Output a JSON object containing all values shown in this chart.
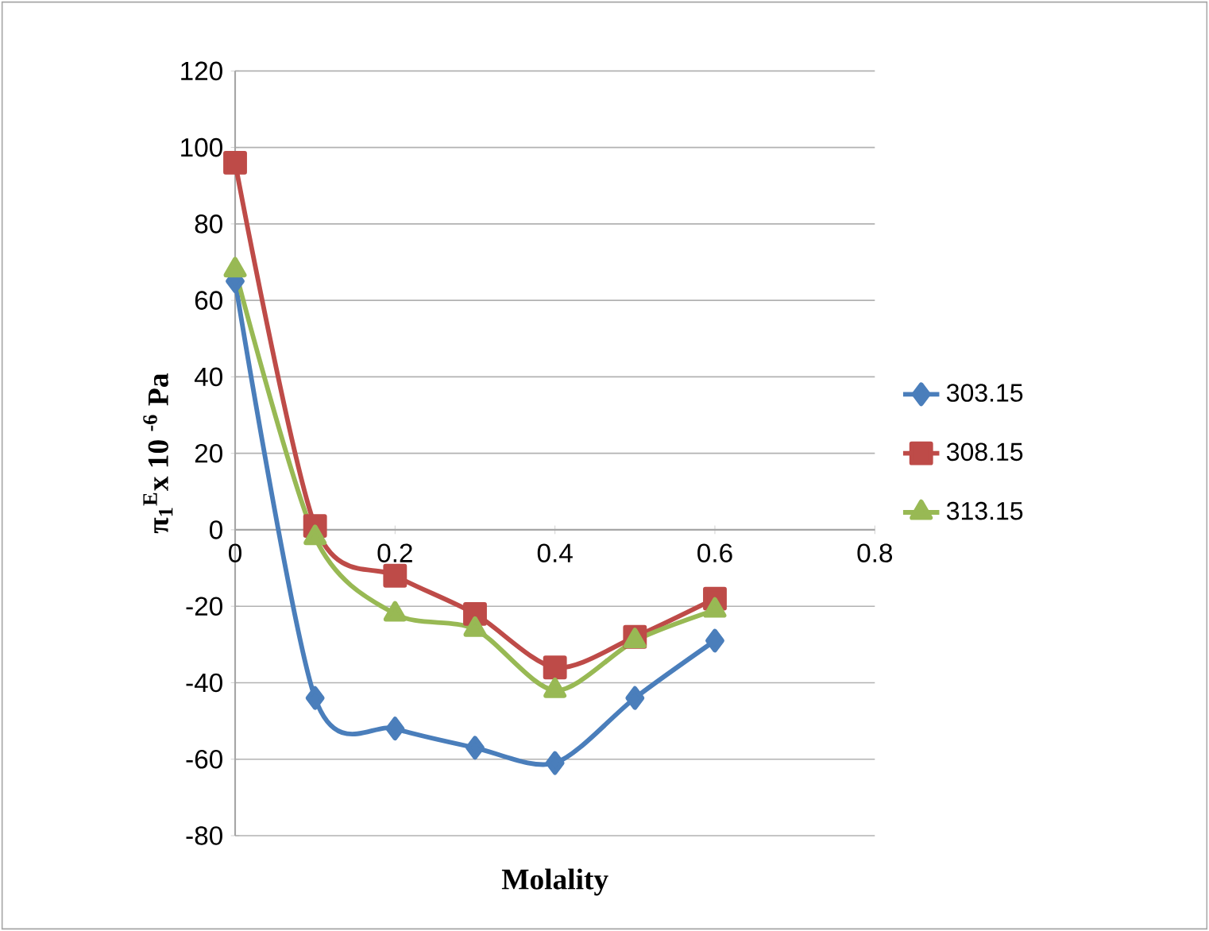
{
  "chart_data": {
    "type": "line",
    "xlabel": "Molality",
    "ylabel": "π$_{1}$$^{E}$x 10 $^{-6}$ Pa",
    "x": [
      0,
      0.1,
      0.2,
      0.3,
      0.4,
      0.5,
      0.6
    ],
    "series": [
      {
        "name": "303.15",
        "color": "#4a7ebb",
        "marker": "diamond",
        "values": [
          65,
          -44,
          -52,
          -57,
          -61,
          -44,
          -29
        ]
      },
      {
        "name": "308.15",
        "color": "#be4b48",
        "marker": "square",
        "values": [
          96,
          1,
          -12,
          -22,
          -36,
          -28,
          -18
        ]
      },
      {
        "name": "313.15",
        "color": "#98b954",
        "marker": "triangle",
        "values": [
          68,
          -2,
          -22,
          -26,
          -42,
          -29,
          -21
        ]
      }
    ],
    "xlim": [
      0,
      0.8
    ],
    "xticks": [
      0,
      0.2,
      0.4,
      0.6,
      0.8
    ],
    "ylim": [
      -80,
      120
    ],
    "yticks": [
      -80,
      -60,
      -40,
      -20,
      0,
      20,
      40,
      60,
      80,
      100,
      120
    ],
    "grid": "y",
    "legend": "right"
  }
}
